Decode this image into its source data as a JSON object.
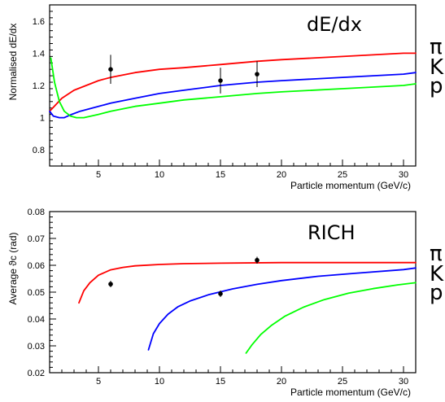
{
  "chart_data": [
    {
      "type": "line",
      "title": "dE/dx",
      "xlabel": "Particle momentum (GeV/c)",
      "ylabel": "Normalised dE/dx",
      "xlim": [
        1,
        31
      ],
      "ylim": [
        0.7,
        1.7
      ],
      "x_ticks": [
        5,
        10,
        15,
        20,
        25,
        30
      ],
      "y_ticks": [
        0.8,
        1,
        1.2,
        1.4,
        1.6
      ],
      "y_tick_labels": [
        "0.8",
        "1",
        "1.2",
        "1.4",
        "1.6"
      ],
      "particle_labels": [
        "π",
        "K",
        "p"
      ],
      "series": [
        {
          "color": "#ff0000",
          "x": [
            1,
            1.5,
            2,
            3,
            4,
            5,
            6,
            8,
            10,
            12,
            15,
            18,
            20,
            25,
            30,
            31
          ],
          "values": [
            1.04,
            1.08,
            1.12,
            1.17,
            1.2,
            1.23,
            1.25,
            1.28,
            1.3,
            1.31,
            1.33,
            1.35,
            1.36,
            1.38,
            1.4,
            1.4
          ]
        },
        {
          "color": "#0000ff",
          "x": [
            1,
            1.3,
            1.8,
            2.2,
            2.8,
            3.5,
            4,
            5,
            6,
            8,
            10,
            12,
            15,
            18,
            20,
            25,
            30,
            31
          ],
          "values": [
            1.04,
            1.01,
            1.0,
            1.0,
            1.02,
            1.04,
            1.05,
            1.07,
            1.09,
            1.12,
            1.15,
            1.17,
            1.2,
            1.22,
            1.23,
            1.25,
            1.27,
            1.28
          ]
        },
        {
          "color": "#00ff00",
          "x": [
            1.1,
            1.4,
            1.8,
            2.2,
            2.7,
            3.2,
            3.8,
            5,
            6,
            8,
            10,
            12,
            15,
            18,
            20,
            25,
            30,
            31
          ],
          "values": [
            1.37,
            1.22,
            1.1,
            1.04,
            1.01,
            1.0,
            1.0,
            1.02,
            1.04,
            1.07,
            1.09,
            1.11,
            1.13,
            1.15,
            1.16,
            1.18,
            1.2,
            1.21
          ]
        }
      ],
      "points": [
        {
          "x": 6,
          "y": 1.3,
          "err": 0.09
        },
        {
          "x": 15,
          "y": 1.23,
          "err": 0.08
        },
        {
          "x": 18,
          "y": 1.27,
          "err": 0.08
        }
      ]
    },
    {
      "type": "line",
      "title": "RICH",
      "xlabel": "Particle momentum (GeV/c)",
      "ylabel": "Average ϑc (rad)",
      "xlim": [
        1,
        31
      ],
      "ylim": [
        0.02,
        0.08
      ],
      "x_ticks": [
        5,
        10,
        15,
        20,
        25,
        30
      ],
      "y_ticks": [
        0.02,
        0.03,
        0.04,
        0.05,
        0.06,
        0.07,
        0.08
      ],
      "y_tick_labels": [
        "0.02",
        "0.03",
        "0.04",
        "0.05",
        "0.06",
        "0.07",
        "0.08"
      ],
      "particle_labels": [
        "π",
        "K",
        "p"
      ],
      "series": [
        {
          "color": "#ff0000",
          "x": [
            3.4,
            3.8,
            4.3,
            5,
            6,
            7,
            8,
            10,
            12,
            15,
            20,
            25,
            30,
            31
          ],
          "values": [
            0.046,
            0.0505,
            0.0535,
            0.0563,
            0.0583,
            0.0592,
            0.0598,
            0.0603,
            0.0606,
            0.0608,
            0.061,
            0.061,
            0.061,
            0.061
          ]
        },
        {
          "color": "#0000ff",
          "x": [
            9.1,
            9.5,
            10,
            10.7,
            11.5,
            12.5,
            14,
            16,
            18,
            20,
            23,
            26,
            30,
            31
          ],
          "values": [
            0.0285,
            0.0345,
            0.0383,
            0.0418,
            0.0445,
            0.0467,
            0.049,
            0.0512,
            0.0529,
            0.0543,
            0.0559,
            0.057,
            0.0584,
            0.059
          ]
        },
        {
          "color": "#00ff00",
          "x": [
            17.1,
            17.6,
            18.3,
            19.2,
            20.3,
            21.8,
            23.5,
            25.5,
            27.5,
            29.5,
            31
          ],
          "values": [
            0.0273,
            0.0305,
            0.0342,
            0.0377,
            0.0411,
            0.0444,
            0.0472,
            0.0496,
            0.0513,
            0.0527,
            0.0535
          ]
        }
      ],
      "points": [
        {
          "x": 6,
          "y": 0.053,
          "err": 0.0012
        },
        {
          "x": 15,
          "y": 0.0494,
          "err": 0.0012
        },
        {
          "x": 18,
          "y": 0.0619,
          "err": 0.0013
        }
      ]
    }
  ]
}
